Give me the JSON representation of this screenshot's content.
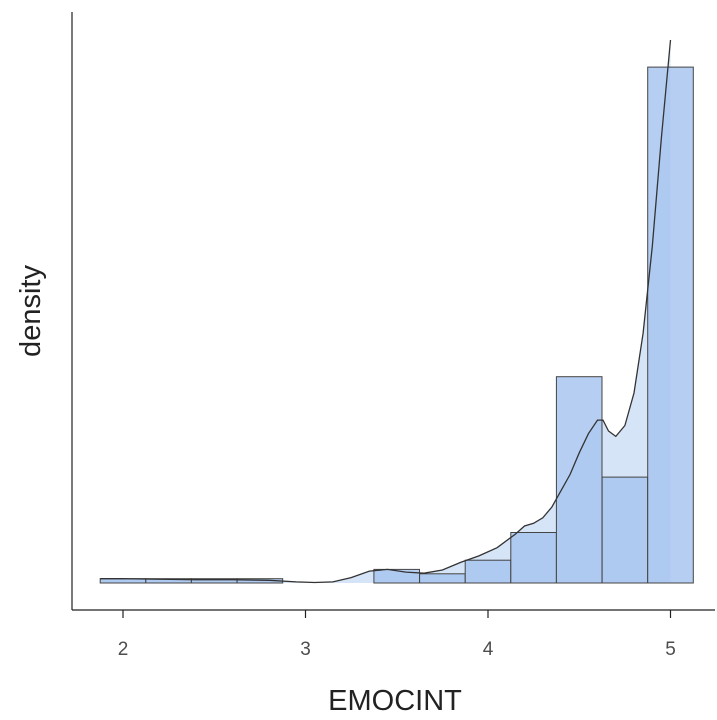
{
  "chart_data": {
    "type": "bar",
    "subtype": "histogram-with-density",
    "title": "",
    "xlabel": "EMOCINT",
    "ylabel": "density",
    "xlim": [
      1.78,
      5.25
    ],
    "ylim": [
      0,
      1.0
    ],
    "x_ticks": [
      2,
      3,
      4,
      5
    ],
    "y_ticks_shown": false,
    "grid": false,
    "legend": "none",
    "bar_fill_color": "#a8c5f0",
    "bar_stroke_color": "#444444",
    "density_fill_color": "#d6e4f7",
    "density_line_color": "#333333",
    "bins": [
      {
        "x0": 1.875,
        "x1": 2.125,
        "value": 0.008
      },
      {
        "x0": 2.125,
        "x1": 2.375,
        "value": 0.008
      },
      {
        "x0": 2.375,
        "x1": 2.625,
        "value": 0.008
      },
      {
        "x0": 2.625,
        "x1": 2.875,
        "value": 0.008
      },
      {
        "x0": 3.375,
        "x1": 3.625,
        "value": 0.025
      },
      {
        "x0": 3.625,
        "x1": 3.875,
        "value": 0.017
      },
      {
        "x0": 3.875,
        "x1": 4.125,
        "value": 0.042
      },
      {
        "x0": 4.125,
        "x1": 4.375,
        "value": 0.093
      },
      {
        "x0": 4.375,
        "x1": 4.625,
        "value": 0.38
      },
      {
        "x0": 4.625,
        "x1": 4.875,
        "value": 0.195
      },
      {
        "x0": 4.875,
        "x1": 5.125,
        "value": 0.95
      }
    ],
    "density": {
      "x": [
        1.875,
        2.0,
        2.2,
        2.4,
        2.6,
        2.8,
        2.95,
        3.05,
        3.15,
        3.25,
        3.35,
        3.45,
        3.55,
        3.65,
        3.75,
        3.85,
        3.95,
        4.05,
        4.15,
        4.2,
        4.25,
        4.3,
        4.35,
        4.4,
        4.45,
        4.5,
        4.55,
        4.6,
        4.63,
        4.66,
        4.7,
        4.75,
        4.8,
        4.85,
        4.9,
        4.95,
        5.0
      ],
      "y": [
        0.008,
        0.008,
        0.007,
        0.006,
        0.006,
        0.005,
        0.002,
        0.001,
        0.002,
        0.01,
        0.022,
        0.025,
        0.02,
        0.018,
        0.024,
        0.038,
        0.05,
        0.065,
        0.09,
        0.105,
        0.11,
        0.12,
        0.14,
        0.17,
        0.2,
        0.24,
        0.275,
        0.3,
        0.3,
        0.28,
        0.27,
        0.29,
        0.35,
        0.46,
        0.62,
        0.82,
        1.0
      ]
    }
  }
}
